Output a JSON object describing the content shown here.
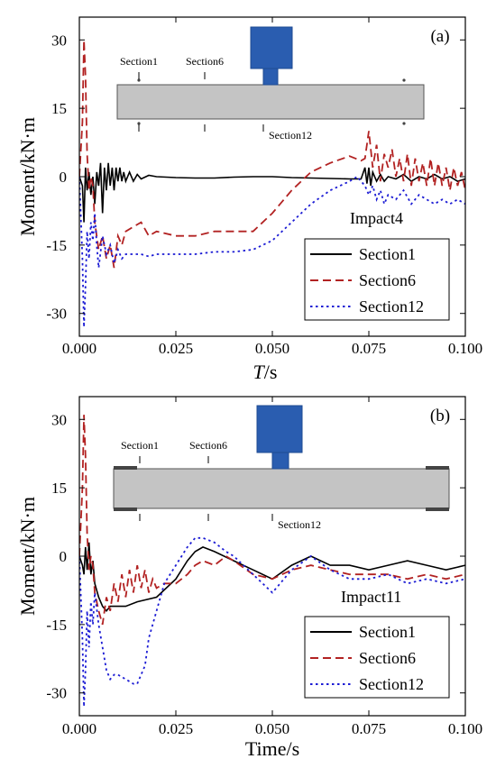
{
  "chart_data": [
    {
      "type": "line",
      "panel_label": "(a)",
      "annotation": "Impact4",
      "xlabel_italic": "T",
      "xlabel_rest": "/s",
      "ylabel": "Moment/kN·m",
      "xlim": [
        0,
        0.1
      ],
      "ylim": [
        -35,
        35
      ],
      "xticks": [
        "0.000",
        "0.025",
        "0.050",
        "0.075",
        "0.100"
      ],
      "yticks": [
        "30",
        "15",
        "0",
        "-15",
        "-30"
      ],
      "legend_position": "bottom-right",
      "diagram_labels": [
        "Section1",
        "Section6",
        "Section12"
      ],
      "series": [
        {
          "name": "Section1",
          "color": "#000000",
          "style": "solid",
          "x": [
            0,
            0.0008,
            0.0012,
            0.0016,
            0.002,
            0.0025,
            0.003,
            0.0035,
            0.004,
            0.0045,
            0.005,
            0.0055,
            0.006,
            0.0065,
            0.007,
            0.0075,
            0.008,
            0.0085,
            0.009,
            0.0095,
            0.01,
            0.0105,
            0.011,
            0.0115,
            0.012,
            0.013,
            0.014,
            0.015,
            0.016,
            0.018,
            0.02,
            0.025,
            0.03,
            0.035,
            0.04,
            0.045,
            0.048,
            0.05,
            0.055,
            0.06,
            0.065,
            0.07,
            0.073,
            0.074,
            0.0745,
            0.075,
            0.0755,
            0.076,
            0.077,
            0.078,
            0.079,
            0.08,
            0.082,
            0.084,
            0.086,
            0.088,
            0.09,
            0.092,
            0.094,
            0.096,
            0.098,
            0.1
          ],
          "y": [
            0,
            -2,
            -10,
            2,
            -3,
            1,
            -4,
            0,
            -6,
            1,
            -2,
            3,
            -8,
            2,
            -3,
            3,
            -2,
            2,
            -3,
            2,
            -1,
            2,
            -1,
            1,
            -1,
            1,
            -1,
            0.5,
            -0.5,
            0.3,
            0,
            -0.2,
            -0.3,
            -0.3,
            -0.1,
            0,
            0,
            0,
            -0.2,
            -0.3,
            -0.4,
            -0.5,
            -0.5,
            2,
            -1.5,
            2,
            -2,
            1,
            -1,
            0.5,
            -1,
            0,
            -0.5,
            0.5,
            -1,
            0,
            -0.5,
            0.5,
            -0.5,
            0,
            -1,
            -0.5
          ]
        },
        {
          "name": "Section6",
          "color": "#b22222",
          "style": "dashed",
          "x": [
            0,
            0.0008,
            0.0012,
            0.0016,
            0.002,
            0.0025,
            0.003,
            0.0035,
            0.004,
            0.005,
            0.006,
            0.007,
            0.008,
            0.009,
            0.01,
            0.011,
            0.012,
            0.014,
            0.016,
            0.018,
            0.02,
            0.025,
            0.03,
            0.035,
            0.04,
            0.045,
            0.05,
            0.055,
            0.06,
            0.065,
            0.07,
            0.073,
            0.074,
            0.075,
            0.076,
            0.077,
            0.078,
            0.079,
            0.08,
            0.081,
            0.082,
            0.083,
            0.084,
            0.085,
            0.086,
            0.087,
            0.088,
            0.089,
            0.09,
            0.091,
            0.092,
            0.093,
            0.094,
            0.095,
            0.096,
            0.097,
            0.098,
            0.099,
            0.1
          ],
          "y": [
            0,
            12,
            30,
            22,
            5,
            -3,
            0,
            -2,
            -10,
            -16,
            -13,
            -18,
            -15,
            -20,
            -13,
            -15,
            -12,
            -11,
            -10,
            -13,
            -12,
            -13,
            -13,
            -12,
            -12,
            -12,
            -8,
            -3,
            1,
            3,
            4.5,
            3.5,
            4,
            10,
            2,
            7,
            -1,
            5,
            2,
            6,
            0,
            4,
            -1,
            5,
            -2,
            4,
            -1,
            3,
            -2,
            4,
            -2,
            3,
            -2,
            2,
            -3,
            2,
            -2,
            1,
            -3
          ]
        },
        {
          "name": "Section12",
          "color": "#1c1cd4",
          "style": "dotted",
          "x": [
            0,
            0.0008,
            0.0012,
            0.0016,
            0.002,
            0.0025,
            0.003,
            0.0035,
            0.004,
            0.0045,
            0.005,
            0.006,
            0.007,
            0.008,
            0.009,
            0.01,
            0.011,
            0.012,
            0.014,
            0.016,
            0.018,
            0.02,
            0.025,
            0.03,
            0.035,
            0.04,
            0.045,
            0.05,
            0.055,
            0.06,
            0.065,
            0.07,
            0.072,
            0.073,
            0.074,
            0.075,
            0.076,
            0.077,
            0.078,
            0.079,
            0.08,
            0.082,
            0.084,
            0.086,
            0.088,
            0.09,
            0.092,
            0.094,
            0.096,
            0.098,
            0.1
          ],
          "y": [
            0,
            -18,
            -33,
            -24,
            -12,
            -18,
            -10,
            -14,
            -8,
            -15,
            -20,
            -13,
            -17,
            -15,
            -19,
            -16,
            -18,
            -17,
            -17,
            -17,
            -17.5,
            -17,
            -17,
            -17,
            -16.5,
            -16.5,
            -16,
            -14,
            -10,
            -6,
            -3,
            -1,
            0,
            -1,
            -2,
            -4,
            -2,
            -5,
            -3,
            -6,
            -4,
            -5,
            -3,
            -6,
            -4,
            -5,
            -6,
            -5,
            -6,
            -5,
            -6
          ]
        }
      ]
    },
    {
      "type": "line",
      "panel_label": "(b)",
      "annotation": "Impact11",
      "xlabel": "Time/s",
      "ylabel": "Moment/kN·m",
      "xlim": [
        0,
        0.1
      ],
      "ylim": [
        -35,
        35
      ],
      "xticks": [
        "0.000",
        "0.025",
        "0.050",
        "0.075",
        "0.100"
      ],
      "yticks": [
        "30",
        "15",
        "0",
        "-15",
        "-30"
      ],
      "legend_position": "bottom-right",
      "diagram_labels": [
        "Section1",
        "Section6",
        "Section12"
      ],
      "series": [
        {
          "name": "Section1",
          "color": "#000000",
          "style": "solid",
          "x": [
            0,
            0.0008,
            0.0012,
            0.0016,
            0.002,
            0.0025,
            0.003,
            0.0035,
            0.004,
            0.005,
            0.006,
            0.007,
            0.008,
            0.01,
            0.012,
            0.015,
            0.02,
            0.025,
            0.028,
            0.03,
            0.032,
            0.035,
            0.04,
            0.045,
            0.05,
            0.055,
            0.06,
            0.065,
            0.07,
            0.075,
            0.08,
            0.085,
            0.09,
            0.095,
            0.1
          ],
          "y": [
            0,
            -2,
            -4,
            2,
            -3,
            3,
            -4,
            -1,
            -6,
            -9,
            -11,
            -12,
            -11,
            -11,
            -11,
            -10,
            -9,
            -5,
            -1,
            1,
            2,
            1,
            -1,
            -3,
            -5,
            -2,
            0,
            -2,
            -2,
            -3,
            -2,
            -1,
            -2,
            -3,
            -2
          ]
        },
        {
          "name": "Section6",
          "color": "#b22222",
          "style": "dashed",
          "x": [
            0,
            0.0008,
            0.0012,
            0.0016,
            0.002,
            0.0025,
            0.003,
            0.0035,
            0.004,
            0.005,
            0.006,
            0.007,
            0.008,
            0.009,
            0.01,
            0.011,
            0.012,
            0.013,
            0.014,
            0.015,
            0.016,
            0.017,
            0.018,
            0.019,
            0.02,
            0.022,
            0.025,
            0.028,
            0.03,
            0.032,
            0.035,
            0.038,
            0.04,
            0.045,
            0.05,
            0.055,
            0.06,
            0.065,
            0.07,
            0.075,
            0.08,
            0.085,
            0.09,
            0.095,
            0.1
          ],
          "y": [
            0,
            15,
            31,
            22,
            5,
            -3,
            0,
            -2,
            -8,
            -12,
            -15,
            -9,
            -12,
            -6,
            -10,
            -4,
            -9,
            -3,
            -8,
            -2,
            -7,
            -3,
            -8,
            -5,
            -7,
            -6,
            -6,
            -4,
            -2,
            -1,
            -2,
            0,
            -1,
            -4,
            -5,
            -3,
            -2,
            -3,
            -4,
            -4,
            -4,
            -5,
            -4,
            -5,
            -4
          ]
        },
        {
          "name": "Section12",
          "color": "#1c1cd4",
          "style": "dotted",
          "x": [
            0,
            0.0008,
            0.0012,
            0.0016,
            0.002,
            0.0025,
            0.003,
            0.0035,
            0.004,
            0.005,
            0.006,
            0.007,
            0.008,
            0.009,
            0.01,
            0.012,
            0.014,
            0.015,
            0.017,
            0.018,
            0.02,
            0.022,
            0.025,
            0.028,
            0.03,
            0.032,
            0.035,
            0.038,
            0.04,
            0.045,
            0.05,
            0.055,
            0.06,
            0.065,
            0.07,
            0.075,
            0.08,
            0.085,
            0.09,
            0.095,
            0.1
          ],
          "y": [
            0,
            -18,
            -33,
            -25,
            -12,
            -20,
            -10,
            -15,
            -8,
            -15,
            -20,
            -25,
            -27,
            -26,
            -26,
            -27,
            -28,
            -28,
            -24,
            -18,
            -12,
            -6,
            -2,
            2,
            4,
            4,
            3,
            1,
            0,
            -4,
            -8,
            -3,
            0,
            -3,
            -5,
            -5,
            -4,
            -6,
            -5,
            -6,
            -5
          ]
        }
      ]
    }
  ]
}
